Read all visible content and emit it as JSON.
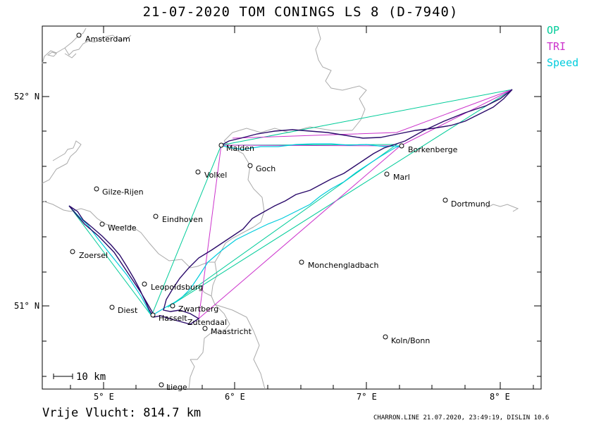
{
  "title": "21-07-2020   TOM CONINGS   LS 8 (D-7940)",
  "legend": [
    {
      "label": "OP",
      "color": "#00cc99"
    },
    {
      "label": "TRI",
      "color": "#cc33cc"
    },
    {
      "label": "Speed",
      "color": "#00ccdd"
    }
  ],
  "footer": {
    "distance": "Vrije Vlucht:  814.7 km",
    "credit": "CHARRON.LINE 21.07.2020, 23:49:19, DISLIN 10.6"
  },
  "scale_bar": "10  km",
  "axes": {
    "x_ticks": [
      "5° E",
      "6° E",
      "7° E",
      "8° E"
    ],
    "y_ticks": [
      "52° N",
      "51° N"
    ]
  },
  "cities": [
    "Amsterdam",
    "Malden",
    "Goch",
    "Borkenberge",
    "Volkel",
    "Marl",
    "Gilze-Rijen",
    "Dortmund",
    "Eindhoven",
    "Weelde",
    "Zoersel",
    "Monchengladbach",
    "Leopoldsburg",
    "Diest",
    "Zwartberg",
    "Hasselt",
    "Zutendaal",
    "Maastricht",
    "Koln/Bonn",
    "Liege"
  ],
  "colors": {
    "track": "#2a0a6a",
    "op": "#00cc99",
    "tri": "#cc33cc",
    "speed": "#00ccdd",
    "border": "#aaaaaa",
    "frame": "#000000"
  }
}
